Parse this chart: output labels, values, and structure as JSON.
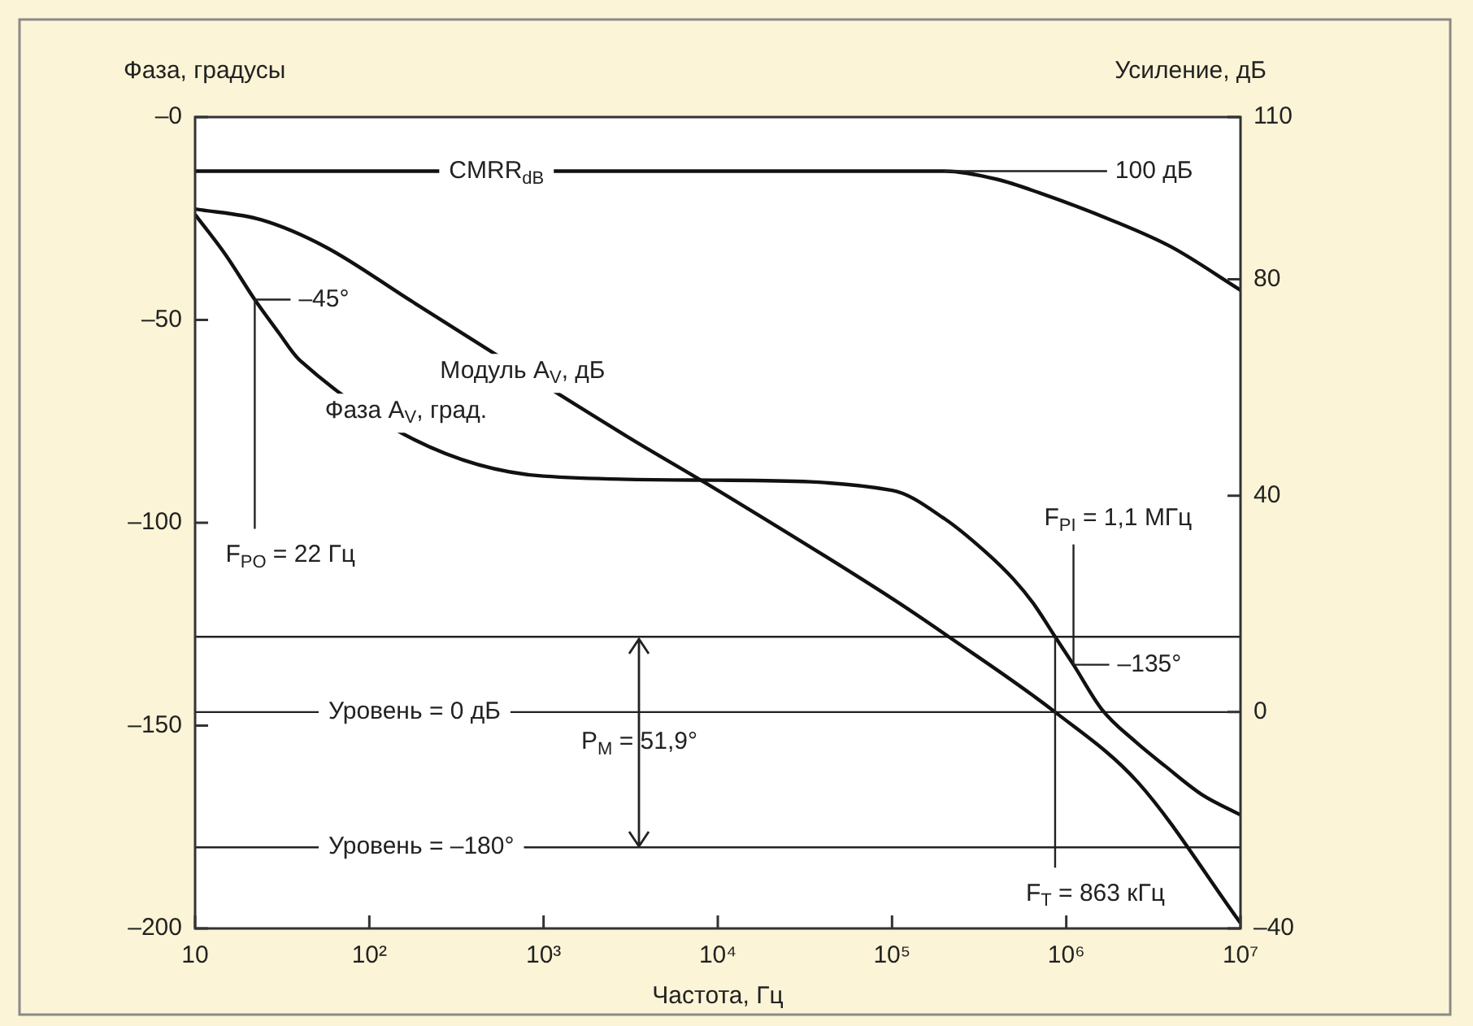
{
  "chart_data": {
    "type": "line",
    "xlabel": "Частота, Гц",
    "ylabel": "Фаза, градусы",
    "y2label": "Усиление, дБ",
    "log": "x",
    "xlim": [
      10,
      10000000
    ],
    "xticks": [
      {
        "value": 10,
        "label": "10"
      },
      {
        "value": 100,
        "label": "10²"
      },
      {
        "value": 1000,
        "label": "10³"
      },
      {
        "value": 10000,
        "label": "10⁴"
      },
      {
        "value": 100000,
        "label": "10⁵"
      },
      {
        "value": 1000000,
        "label": "10⁶"
      },
      {
        "value": 10000000,
        "label": "10⁷"
      }
    ],
    "ylim": [
      -200,
      0
    ],
    "yticks": [
      {
        "value": 0,
        "label": "–0"
      },
      {
        "value": -50,
        "label": "–50"
      },
      {
        "value": -100,
        "label": "–100"
      },
      {
        "value": -150,
        "label": "–150"
      },
      {
        "value": -200,
        "label": "–200"
      }
    ],
    "y2lim": [
      -40,
      110
    ],
    "y2ticks": [
      110,
      80,
      40,
      0,
      {
        "value": -40,
        "label": "–40"
      }
    ],
    "series": [
      {
        "name": "CMRR$_{dB}$",
        "color": "#111111",
        "axis": "y2",
        "x": [
          10,
          100000,
          200000,
          400000,
          700000,
          1800000,
          4000000,
          10000000
        ],
        "values": [
          100,
          100,
          100,
          98.5,
          96,
          91,
          86,
          78
        ],
        "value_labels": [
          null,
          null,
          "100 дБ",
          null,
          null,
          null,
          null,
          null
        ]
      },
      {
        "name": "Модуль A$_{V}$, дБ",
        "color": "#111111",
        "axis": "y2",
        "x": [
          10,
          24,
          56,
          174,
          3000,
          10000,
          100000,
          210000,
          863000,
          2580000,
          10000000
        ],
        "values": [
          93,
          91,
          86,
          76,
          51,
          41,
          21,
          14,
          0,
          -13,
          -39
        ]
      },
      {
        "name": "Фаза A$_{V}$, град.",
        "color": "#111111",
        "axis": "y",
        "x": [
          10,
          15,
          22,
          30,
          40,
          1000,
          10000,
          100000,
          200000,
          340000,
          500000,
          650000,
          863000,
          1100000,
          1600000,
          2500000,
          3700000,
          6000000,
          10000000
        ],
        "values": [
          -24,
          -34,
          -45,
          -53,
          -60,
          -88.5,
          -89.5,
          -92,
          -99,
          -107,
          -114,
          -120,
          -128.1,
          -135,
          -146,
          -154,
          -160,
          -167,
          -172
        ],
        "value_labels": [
          null,
          null,
          "–45°",
          null,
          null,
          null,
          null,
          null,
          null,
          null,
          null,
          null,
          null,
          "–135°",
          null,
          null,
          null,
          null,
          null
        ]
      }
    ],
    "ref_lines": [
      {
        "axis": "y2",
        "value": 0,
        "label": "Уровень = 0 дБ"
      },
      {
        "axis": "y",
        "value": -180,
        "label": "Уровень = –180°"
      },
      {
        "axis": "y",
        "value": -128.1
      }
    ],
    "annotations": [
      {
        "text": "F$_{PO}$ = 22 Гц",
        "x": 22,
        "y": -45
      },
      {
        "text": "F$_{PI}$ = 1,1 МГц",
        "x": 1100000,
        "y": -135
      },
      {
        "text": "F$_{T}$ = 863 кГц",
        "x": 863000,
        "y": -128.1
      },
      "P$_{M}$ = 51,9°"
    ]
  }
}
